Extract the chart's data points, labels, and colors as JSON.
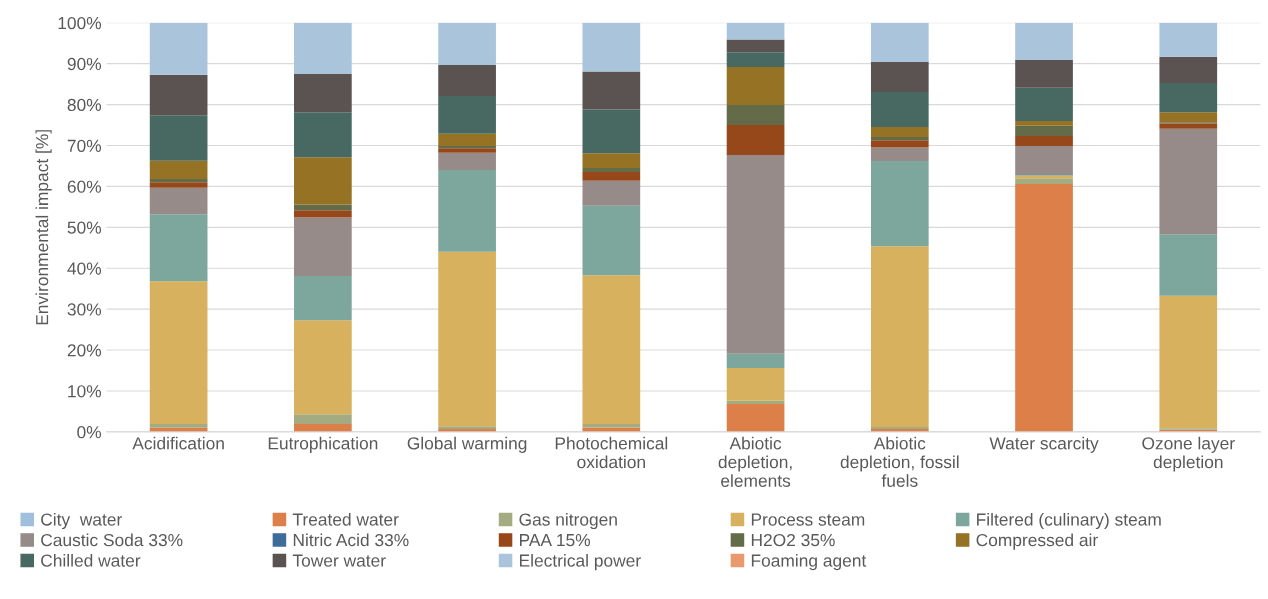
{
  "chart_data": {
    "type": "bar",
    "stacked": true,
    "ylabel": "Environmental impact [%]",
    "categories": [
      "Acidification",
      "Eutrophication",
      "Global warming",
      "Photochemical\noxidation",
      "Abiotic\ndepletion,\nelements",
      "Abiotic\ndepletion, fossil\nfuels",
      "Water scarcity",
      "Ozone layer\ndepletion"
    ],
    "ylim": [
      0,
      100
    ],
    "yticks": [
      {
        "value": 0,
        "label": "0%"
      },
      {
        "value": 10,
        "label": "10%"
      },
      {
        "value": 20,
        "label": "20%"
      },
      {
        "value": 30,
        "label": "30%"
      },
      {
        "value": 40,
        "label": "40%"
      },
      {
        "value": 50,
        "label": "50%"
      },
      {
        "value": 60,
        "label": "60%"
      },
      {
        "value": 70,
        "label": "70%"
      },
      {
        "value": 80,
        "label": "80%"
      },
      {
        "value": 90,
        "label": "90%"
      },
      {
        "value": 100,
        "label": "100%"
      }
    ],
    "grid": "y",
    "legend": "bottom",
    "series": [
      {
        "name": "City  water",
        "color": "#9fbfdc",
        "values": [
          null,
          null,
          null,
          null,
          null,
          null,
          null,
          null
        ]
      },
      {
        "name": "Treated water",
        "color": "#dc7f48",
        "values": [
          1.0,
          1.9,
          0.7,
          1.1,
          6.8,
          0.7,
          60.6,
          0.5
        ]
      },
      {
        "name": "Gas nitrogen",
        "color": "#a5ab80",
        "values": [
          0.9,
          2.4,
          0.7,
          0.8,
          0.8,
          0.5,
          1.4,
          0.4
        ]
      },
      {
        "name": "Process steam",
        "color": "#d7b15d",
        "values": [
          34.9,
          23.0,
          42.6,
          36.4,
          8.0,
          44.2,
          0.6,
          32.4
        ]
      },
      {
        "name": "Filtered (culinary) steam",
        "color": "#7da79c",
        "values": [
          16.4,
          10.8,
          20.0,
          17.0,
          3.5,
          20.8,
          0.2,
          15.0
        ]
      },
      {
        "name": "Caustic Soda 33%",
        "color": "#968b88",
        "values": [
          6.5,
          14.3,
          4.2,
          6.1,
          48.6,
          3.3,
          7.1,
          25.8
        ]
      },
      {
        "name": "Nitric Acid 33%",
        "color": "#3e6d9a",
        "values": [
          null,
          null,
          null,
          null,
          null,
          null,
          null,
          null
        ]
      },
      {
        "name": "PAA 15%",
        "color": "#96481b",
        "values": [
          1.3,
          1.8,
          1.1,
          2.1,
          7.3,
          1.8,
          2.4,
          1.3
        ]
      },
      {
        "name": "H2O2 35%",
        "color": "#646b48",
        "values": [
          0.8,
          1.4,
          0.6,
          1.0,
          4.9,
          0.8,
          2.5,
          0.3
        ]
      },
      {
        "name": "Compressed air",
        "color": "#957224",
        "values": [
          4.5,
          11.5,
          3.0,
          3.6,
          9.3,
          2.4,
          1.2,
          2.4
        ]
      },
      {
        "name": "Chilled water",
        "color": "#476961",
        "values": [
          11.1,
          11.0,
          9.2,
          10.7,
          3.6,
          8.6,
          8.1,
          7.2
        ]
      },
      {
        "name": "Tower water",
        "color": "#5b5252",
        "values": [
          9.9,
          9.4,
          7.6,
          9.3,
          3.1,
          7.3,
          6.8,
          6.4
        ]
      },
      {
        "name": "Electrical power",
        "color": "#a9c4db",
        "values": [
          12.7,
          12.5,
          10.3,
          11.9,
          4.1,
          9.6,
          9.1,
          8.3
        ]
      },
      {
        "name": "Foaming agent",
        "color": "#e89a6e",
        "values": [
          null,
          null,
          null,
          null,
          null,
          null,
          null,
          null
        ]
      }
    ]
  }
}
